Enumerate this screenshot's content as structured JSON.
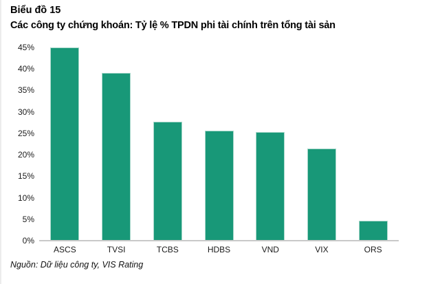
{
  "header": {
    "title": "Biểu đồ 15",
    "subtitle": "Các công ty chứng khoán: Tỷ lệ % TPDN phi tài chính trên tổng tài sản"
  },
  "footer": {
    "source": "Nguồn: Dữ liệu công ty, VIS Rating"
  },
  "colors": {
    "bar_fill": "#189878",
    "bar_edge": "#a9d8cb",
    "axis_line": "#c9c9c9",
    "text": "#000000"
  },
  "chart_data": {
    "type": "bar",
    "categories": [
      "ASCS",
      "TVSI",
      "TCBS",
      "HDBS",
      "VND",
      "VIX",
      "ORS"
    ],
    "values": [
      45,
      39,
      27.7,
      25.6,
      25.3,
      21.5,
      4.7
    ],
    "title": "Biểu đồ 15",
    "subtitle": "Các công ty chứng khoán: Tỷ lệ % TPDN phi tài chính trên tổng tài sản",
    "xlabel": "",
    "ylabel": "",
    "unit": "%",
    "ylim": [
      0,
      45
    ],
    "yticks": [
      "0%",
      "5%",
      "10%",
      "15%",
      "20%",
      "25%",
      "30%",
      "35%",
      "40%",
      "45%"
    ],
    "grid": false,
    "legend": false,
    "source": "Nguồn: Dữ liệu công ty, VIS Rating"
  }
}
